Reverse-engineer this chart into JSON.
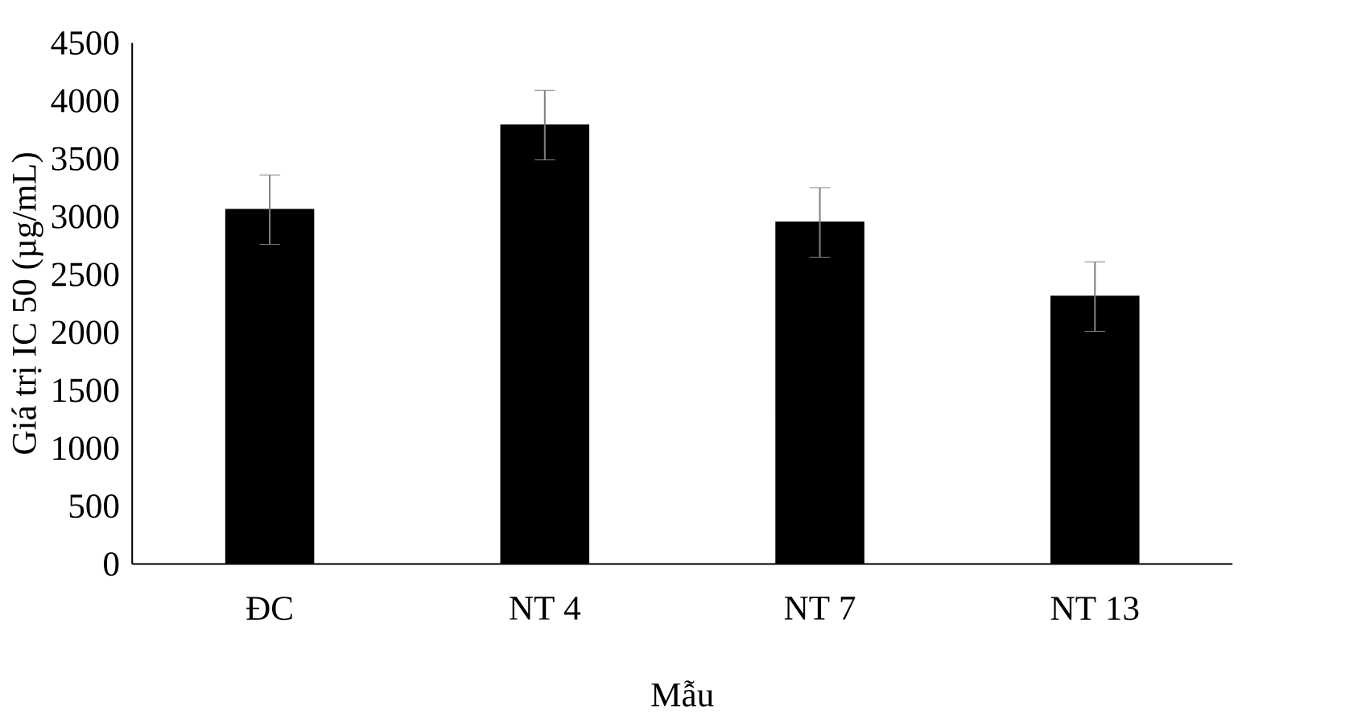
{
  "chart_data": {
    "type": "bar",
    "xlabel": "Mẫu",
    "ylabel": "Giá trị IC 50 (µg/mL)",
    "categories": [
      "ĐC",
      "NT 4",
      "NT 7",
      "NT 13"
    ],
    "values": [
      3060,
      3790,
      2950,
      2310
    ],
    "errors": [
      300,
      300,
      300,
      300
    ],
    "color": "#000000",
    "ylim": [
      0,
      4500
    ],
    "yticks": [
      0,
      500,
      1000,
      1500,
      2000,
      2500,
      3000,
      3500,
      4000,
      4500
    ],
    "grid": false
  }
}
